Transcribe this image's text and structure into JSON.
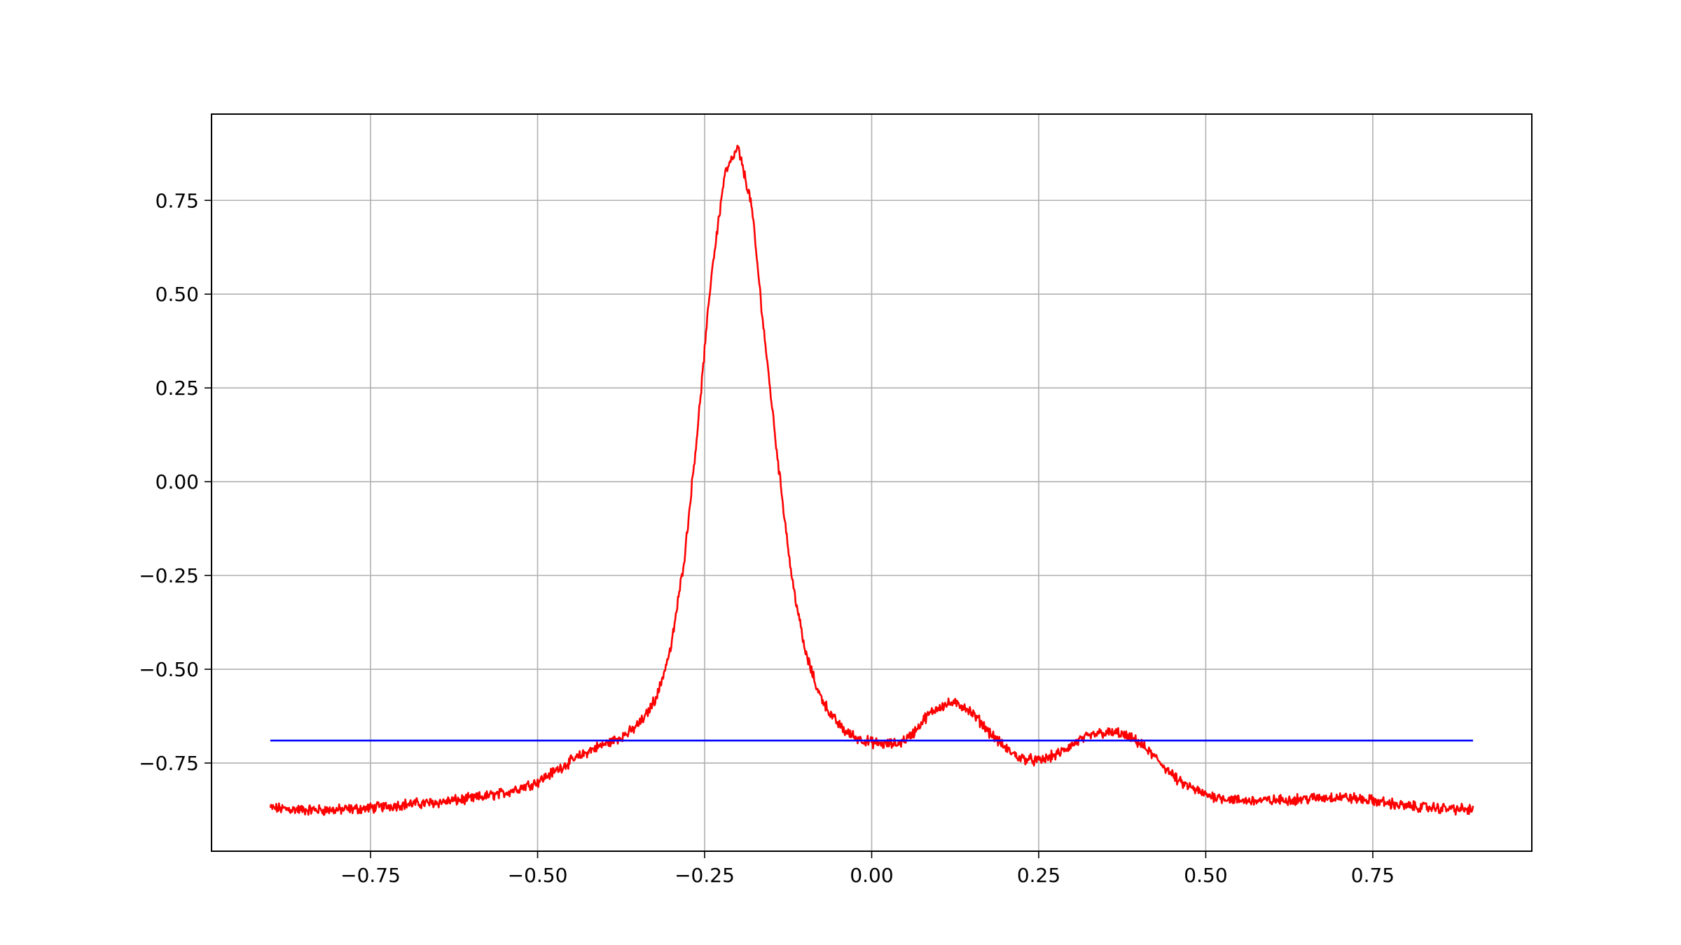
{
  "chart_data": {
    "type": "line",
    "title": "",
    "xlabel": "",
    "ylabel": "",
    "xlim": [
      -0.988,
      0.988
    ],
    "ylim": [
      -0.985,
      0.98
    ],
    "grid": true,
    "legend": "none",
    "x_ticks": [
      {
        "value": -0.75,
        "label": "−0.75"
      },
      {
        "value": -0.5,
        "label": "−0.50"
      },
      {
        "value": -0.25,
        "label": "−0.25"
      },
      {
        "value": 0.0,
        "label": "0.00"
      },
      {
        "value": 0.25,
        "label": "0.25"
      },
      {
        "value": 0.5,
        "label": "0.50"
      },
      {
        "value": 0.75,
        "label": "0.75"
      }
    ],
    "y_ticks": [
      {
        "value": -0.75,
        "label": "−0.75"
      },
      {
        "value": -0.5,
        "label": "−0.50"
      },
      {
        "value": -0.25,
        "label": "−0.25"
      },
      {
        "value": 0.0,
        "label": "0.00"
      },
      {
        "value": 0.25,
        "label": "0.25"
      },
      {
        "value": 0.5,
        "label": "0.50"
      },
      {
        "value": 0.75,
        "label": "0.75"
      }
    ],
    "series": [
      {
        "color": "#ff0000",
        "noisy": true,
        "x": [
          -0.9,
          -0.85,
          -0.8,
          -0.75,
          -0.7,
          -0.65,
          -0.6,
          -0.55,
          -0.5,
          -0.45,
          -0.42,
          -0.4,
          -0.38,
          -0.36,
          -0.34,
          -0.32,
          -0.3,
          -0.28,
          -0.26,
          -0.24,
          -0.22,
          -0.2,
          -0.18,
          -0.16,
          -0.14,
          -0.12,
          -0.1,
          -0.08,
          -0.06,
          -0.04,
          -0.02,
          0.0,
          0.02,
          0.04,
          0.06,
          0.08,
          0.1,
          0.12,
          0.14,
          0.16,
          0.18,
          0.2,
          0.22,
          0.25,
          0.28,
          0.31,
          0.34,
          0.37,
          0.4,
          0.43,
          0.46,
          0.5,
          0.55,
          0.6,
          0.65,
          0.7,
          0.75,
          0.8,
          0.85,
          0.9
        ],
        "y": [
          -0.87,
          -0.875,
          -0.875,
          -0.87,
          -0.86,
          -0.855,
          -0.845,
          -0.83,
          -0.8,
          -0.745,
          -0.715,
          -0.7,
          -0.685,
          -0.665,
          -0.63,
          -0.565,
          -0.44,
          -0.2,
          0.15,
          0.55,
          0.82,
          0.89,
          0.74,
          0.38,
          0.05,
          -0.25,
          -0.45,
          -0.56,
          -0.625,
          -0.665,
          -0.685,
          -0.695,
          -0.7,
          -0.698,
          -0.675,
          -0.63,
          -0.6,
          -0.59,
          -0.6,
          -0.635,
          -0.675,
          -0.71,
          -0.735,
          -0.745,
          -0.725,
          -0.69,
          -0.67,
          -0.67,
          -0.695,
          -0.745,
          -0.8,
          -0.835,
          -0.85,
          -0.85,
          -0.845,
          -0.84,
          -0.85,
          -0.865,
          -0.87,
          -0.875
        ]
      },
      {
        "color": "#0000ff",
        "noisy": false,
        "x": [
          -0.9,
          0.9
        ],
        "y": [
          -0.69,
          -0.69
        ]
      }
    ]
  }
}
